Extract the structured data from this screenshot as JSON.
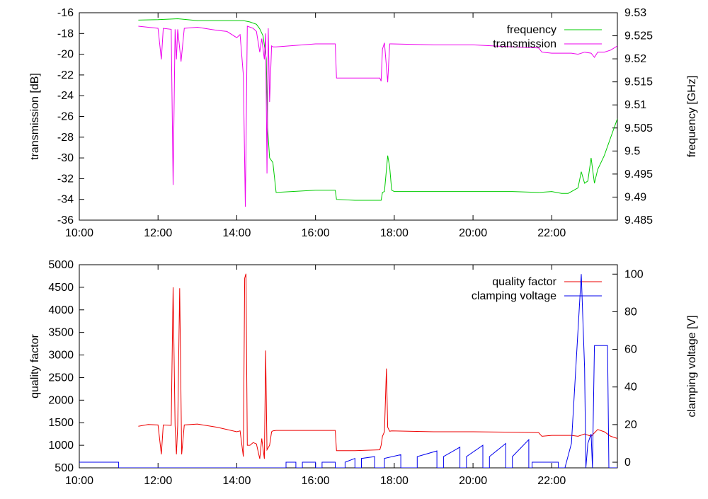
{
  "chart_data": [
    {
      "type": "line",
      "title": "",
      "xlabel": "",
      "ylabel": "transmission [dB]",
      "y2label": "frequency [GHz]",
      "xlim": [
        "10:00",
        "23:40"
      ],
      "ylim": [
        -36,
        -16
      ],
      "y2lim": [
        9.485,
        9.53
      ],
      "x_ticks": [
        "10:00",
        "12:00",
        "14:00",
        "16:00",
        "18:00",
        "20:00",
        "22:00"
      ],
      "y_ticks": [
        "-36",
        "-34",
        "-32",
        "-30",
        "-28",
        "-26",
        "-24",
        "-22",
        "-20",
        "-18",
        "-16"
      ],
      "y2_ticks": [
        "9.485",
        "9.49",
        "9.495",
        "9.5",
        "9.505",
        "9.51",
        "9.515",
        "9.52",
        "9.525",
        "9.53"
      ],
      "grid": false,
      "legend": "top-right",
      "series": [
        {
          "name": "frequency",
          "axis": "right",
          "color": "#00cc00",
          "points": [
            [
              "11:30",
              9.5284
            ],
            [
              "12:00",
              9.5285
            ],
            [
              "12:30",
              9.5287
            ],
            [
              "13:00",
              9.5283
            ],
            [
              "13:30",
              9.5283
            ],
            [
              "14:00",
              9.5283
            ],
            [
              "14:10",
              9.5283
            ],
            [
              "14:20",
              9.528
            ],
            [
              "14:30",
              9.5275
            ],
            [
              "14:35",
              9.5265
            ],
            [
              "14:40",
              9.525
            ],
            [
              "14:45",
              9.52
            ],
            [
              "14:47",
              9.505
            ],
            [
              "14:50",
              9.4985
            ],
            [
              "14:55",
              9.4975
            ],
            [
              "15:00",
              9.491
            ],
            [
              "16:00",
              9.4915
            ],
            [
              "16:30",
              9.4915
            ],
            [
              "16:32",
              9.4895
            ],
            [
              "17:00",
              9.4893
            ],
            [
              "17:30",
              9.4893
            ],
            [
              "17:40",
              9.4893
            ],
            [
              "17:42",
              9.491
            ],
            [
              "17:45",
              9.4912
            ],
            [
              "17:50",
              9.499
            ],
            [
              "17:53",
              9.4965
            ],
            [
              "17:56",
              9.4915
            ],
            [
              "18:00",
              9.4912
            ],
            [
              "19:00",
              9.4912
            ],
            [
              "20:00",
              9.4912
            ],
            [
              "21:00",
              9.4912
            ],
            [
              "21:40",
              9.491
            ],
            [
              "22:00",
              9.4912
            ],
            [
              "22:15",
              9.4908
            ],
            [
              "22:25",
              9.4908
            ],
            [
              "22:40",
              9.492
            ],
            [
              "22:45",
              9.4955
            ],
            [
              "22:50",
              9.493
            ],
            [
              "22:55",
              9.4935
            ],
            [
              "23:00",
              9.4985
            ],
            [
              "23:05",
              9.493
            ],
            [
              "23:10",
              9.496
            ],
            [
              "23:20",
              9.499
            ],
            [
              "23:30",
              9.503
            ],
            [
              "23:40",
              9.507
            ]
          ]
        },
        {
          "name": "transmission",
          "axis": "left",
          "color": "#ee00ee",
          "points": [
            [
              "11:30",
              -17.3
            ],
            [
              "11:45",
              -17.4
            ],
            [
              "12:00",
              -17.5
            ],
            [
              "12:05",
              -20.5
            ],
            [
              "12:08",
              -17.5
            ],
            [
              "12:20",
              -17.6
            ],
            [
              "12:23",
              -32.6
            ],
            [
              "12:26",
              -17.6
            ],
            [
              "12:28",
              -20.5
            ],
            [
              "12:30",
              -17.6
            ],
            [
              "12:35",
              -20.7
            ],
            [
              "12:40",
              -17.5
            ],
            [
              "13:00",
              -17.4
            ],
            [
              "13:30",
              -17.7
            ],
            [
              "13:45",
              -17.8
            ],
            [
              "14:00",
              -18.4
            ],
            [
              "14:05",
              -18.1
            ],
            [
              "14:10",
              -22
            ],
            [
              "14:13",
              -34.7
            ],
            [
              "14:16",
              -17.3
            ],
            [
              "14:25",
              -17.5
            ],
            [
              "14:30",
              -17.8
            ],
            [
              "14:35",
              -19.8
            ],
            [
              "14:38",
              -18.5
            ],
            [
              "14:42",
              -20.5
            ],
            [
              "14:44",
              -18
            ],
            [
              "14:46",
              -31.5
            ],
            [
              "14:48",
              -17.5
            ],
            [
              "14:50",
              -24.6
            ],
            [
              "14:53",
              -19.2
            ],
            [
              "14:55",
              -19.3
            ],
            [
              "15:00",
              -19.3
            ],
            [
              "16:00",
              -19
            ],
            [
              "16:30",
              -19
            ],
            [
              "16:32",
              -22.3
            ],
            [
              "17:00",
              -22.3
            ],
            [
              "17:38",
              -22.3
            ],
            [
              "17:40",
              -22.6
            ],
            [
              "17:42",
              -19.5
            ],
            [
              "17:45",
              -18.9
            ],
            [
              "17:50",
              -22.7
            ],
            [
              "17:53",
              -19
            ],
            [
              "17:56",
              -19
            ],
            [
              "19:00",
              -19.1
            ],
            [
              "20:00",
              -19.1
            ],
            [
              "21:00",
              -19.3
            ],
            [
              "21:40",
              -19.4
            ],
            [
              "21:45",
              -19.8
            ],
            [
              "22:00",
              -19.9
            ],
            [
              "22:30",
              -19.9
            ],
            [
              "22:40",
              -20
            ],
            [
              "22:50",
              -19.8
            ],
            [
              "23:00",
              -19.9
            ],
            [
              "23:05",
              -20.3
            ],
            [
              "23:10",
              -19.8
            ],
            [
              "23:20",
              -19.8
            ],
            [
              "23:30",
              -19.6
            ],
            [
              "23:40",
              -19.2
            ]
          ]
        }
      ]
    },
    {
      "type": "line",
      "title": "",
      "xlabel": "",
      "ylabel": "quality factor",
      "y2label": "clamping voltage [V]",
      "xlim": [
        "10:00",
        "23:40"
      ],
      "ylim": [
        500,
        5000
      ],
      "y2lim": [
        -3,
        105
      ],
      "x_ticks": [
        "10:00",
        "12:00",
        "14:00",
        "16:00",
        "18:00",
        "20:00",
        "22:00"
      ],
      "y_ticks": [
        "500",
        "1000",
        "1500",
        "2000",
        "2500",
        "3000",
        "3500",
        "4000",
        "4500",
        "5000"
      ],
      "y2_ticks": [
        "0",
        "20",
        "40",
        "60",
        "80",
        "100"
      ],
      "grid": false,
      "legend": "top-right",
      "series": [
        {
          "name": "quality factor",
          "axis": "left",
          "color": "#ee0000",
          "points": [
            [
              "11:30",
              1420
            ],
            [
              "11:45",
              1460
            ],
            [
              "12:00",
              1450
            ],
            [
              "12:05",
              800
            ],
            [
              "12:08",
              1450
            ],
            [
              "12:20",
              1440
            ],
            [
              "12:23",
              4500
            ],
            [
              "12:26",
              1440
            ],
            [
              "12:28",
              800
            ],
            [
              "12:30",
              1440
            ],
            [
              "12:33",
              4480
            ],
            [
              "12:36",
              800
            ],
            [
              "12:40",
              1450
            ],
            [
              "13:00",
              1470
            ],
            [
              "13:30",
              1400
            ],
            [
              "14:00",
              1300
            ],
            [
              "14:05",
              1320
            ],
            [
              "14:10",
              750
            ],
            [
              "14:12",
              4700
            ],
            [
              "14:14",
              4800
            ],
            [
              "14:16",
              1000
            ],
            [
              "14:20",
              1000
            ],
            [
              "14:25",
              1060
            ],
            [
              "14:30",
              1030
            ],
            [
              "14:35",
              700
            ],
            [
              "14:38",
              1150
            ],
            [
              "14:42",
              700
            ],
            [
              "14:44",
              3100
            ],
            [
              "14:46",
              900
            ],
            [
              "14:50",
              1000
            ],
            [
              "14:53",
              1300
            ],
            [
              "14:55",
              1320
            ],
            [
              "15:00",
              1330
            ],
            [
              "16:00",
              1330
            ],
            [
              "16:30",
              1330
            ],
            [
              "16:32",
              880
            ],
            [
              "17:00",
              880
            ],
            [
              "17:38",
              900
            ],
            [
              "17:40",
              1000
            ],
            [
              "17:42",
              1200
            ],
            [
              "17:45",
              1300
            ],
            [
              "17:48",
              2700
            ],
            [
              "17:50",
              1400
            ],
            [
              "17:53",
              1310
            ],
            [
              "17:56",
              1320
            ],
            [
              "19:00",
              1300
            ],
            [
              "20:00",
              1300
            ],
            [
              "21:00",
              1290
            ],
            [
              "21:40",
              1280
            ],
            [
              "21:45",
              1200
            ],
            [
              "22:00",
              1220
            ],
            [
              "22:30",
              1220
            ],
            [
              "22:40",
              1200
            ],
            [
              "22:50",
              1250
            ],
            [
              "23:00",
              1200
            ],
            [
              "23:10",
              1350
            ],
            [
              "23:20",
              1300
            ],
            [
              "23:30",
              1200
            ],
            [
              "23:40",
              1150
            ]
          ]
        },
        {
          "name": "clamping voltage",
          "axis": "right",
          "color": "#0000ee",
          "points": [
            [
              "10:00",
              0
            ],
            [
              "11:00",
              0
            ],
            [
              "11:00",
              -3
            ],
            [
              "15:15",
              -3
            ],
            [
              "15:15",
              0
            ],
            [
              "15:30",
              0
            ],
            [
              "15:30",
              -3
            ],
            [
              "15:40",
              -3
            ],
            [
              "15:40",
              0
            ],
            [
              "16:00",
              0
            ],
            [
              "16:00",
              -3
            ],
            [
              "16:10",
              -3
            ],
            [
              "16:10",
              0
            ],
            [
              "16:30",
              0
            ],
            [
              "16:30",
              -3
            ],
            [
              "16:45",
              -3
            ],
            [
              "16:45",
              0
            ],
            [
              "17:00",
              2
            ],
            [
              "17:00",
              -3
            ],
            [
              "17:10",
              -3
            ],
            [
              "17:10",
              2
            ],
            [
              "17:30",
              3
            ],
            [
              "17:30",
              -3
            ],
            [
              "17:45",
              -3
            ],
            [
              "17:45",
              2
            ],
            [
              "18:10",
              4
            ],
            [
              "18:10",
              -3
            ],
            [
              "18:35",
              -3
            ],
            [
              "18:35",
              3
            ],
            [
              "19:05",
              6
            ],
            [
              "19:05",
              -3
            ],
            [
              "19:15",
              -3
            ],
            [
              "19:15",
              3
            ],
            [
              "19:40",
              8
            ],
            [
              "19:40",
              -3
            ],
            [
              "19:50",
              -3
            ],
            [
              "19:50",
              3
            ],
            [
              "20:15",
              9
            ],
            [
              "20:15",
              -3
            ],
            [
              "20:25",
              -3
            ],
            [
              "20:25",
              3
            ],
            [
              "20:50",
              10
            ],
            [
              "20:50",
              -3
            ],
            [
              "21:00",
              -3
            ],
            [
              "21:00",
              3
            ],
            [
              "21:25",
              12
            ],
            [
              "21:25",
              -3
            ],
            [
              "21:30",
              -3
            ],
            [
              "21:30",
              0
            ],
            [
              "22:10",
              0
            ],
            [
              "22:10",
              -3
            ],
            [
              "22:20",
              -3
            ],
            [
              "22:30",
              10
            ],
            [
              "22:45",
              100
            ],
            [
              "22:50",
              50
            ],
            [
              "22:52",
              -3
            ],
            [
              "22:55",
              10
            ],
            [
              "23:00",
              15
            ],
            [
              "23:02",
              -3
            ],
            [
              "23:05",
              62
            ],
            [
              "23:25",
              62
            ],
            [
              "23:27",
              -3
            ],
            [
              "23:40",
              -3
            ]
          ]
        }
      ]
    }
  ]
}
